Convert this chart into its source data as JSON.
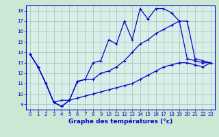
{
  "title": "Graphe des températures (°c)",
  "background_color": "#cce8d4",
  "plot_bg_color": "#d8eee8",
  "grid_color": "#aabbb5",
  "line_color": "#0000cc",
  "spine_color": "#0000cc",
  "xlim": [
    -0.5,
    23.5
  ],
  "ylim": [
    8.5,
    18.5
  ],
  "xticks": [
    0,
    1,
    2,
    3,
    4,
    5,
    6,
    7,
    8,
    9,
    10,
    11,
    12,
    13,
    14,
    15,
    16,
    17,
    18,
    19,
    20,
    21,
    22,
    23
  ],
  "yticks": [
    9,
    10,
    11,
    12,
    13,
    14,
    15,
    16,
    17,
    18
  ],
  "line1_y": [
    13.8,
    12.6,
    11.0,
    9.2,
    8.8,
    9.4,
    11.2,
    11.4,
    13.0,
    13.2,
    15.2,
    14.8,
    17.0,
    15.2,
    18.2,
    17.2,
    18.2,
    18.2,
    17.8,
    17.0,
    13.4,
    13.2,
    13.0,
    13.0
  ],
  "line2_y": [
    13.8,
    12.6,
    11.0,
    9.2,
    9.4,
    9.4,
    11.2,
    11.4,
    11.4,
    12.0,
    12.2,
    12.6,
    13.2,
    14.0,
    14.8,
    15.2,
    15.8,
    16.2,
    16.6,
    17.0,
    17.0,
    13.4,
    13.2,
    13.0
  ],
  "line3_y": [
    13.8,
    12.6,
    11.0,
    9.2,
    8.8,
    9.4,
    9.6,
    9.8,
    10.0,
    10.2,
    10.4,
    10.6,
    10.8,
    11.0,
    11.4,
    11.8,
    12.2,
    12.6,
    12.8,
    13.0,
    13.0,
    12.8,
    12.6,
    13.0
  ],
  "xlabel_fontsize": 6.5,
  "tick_fontsize": 5.0,
  "linewidth": 0.9,
  "markersize": 3.5
}
